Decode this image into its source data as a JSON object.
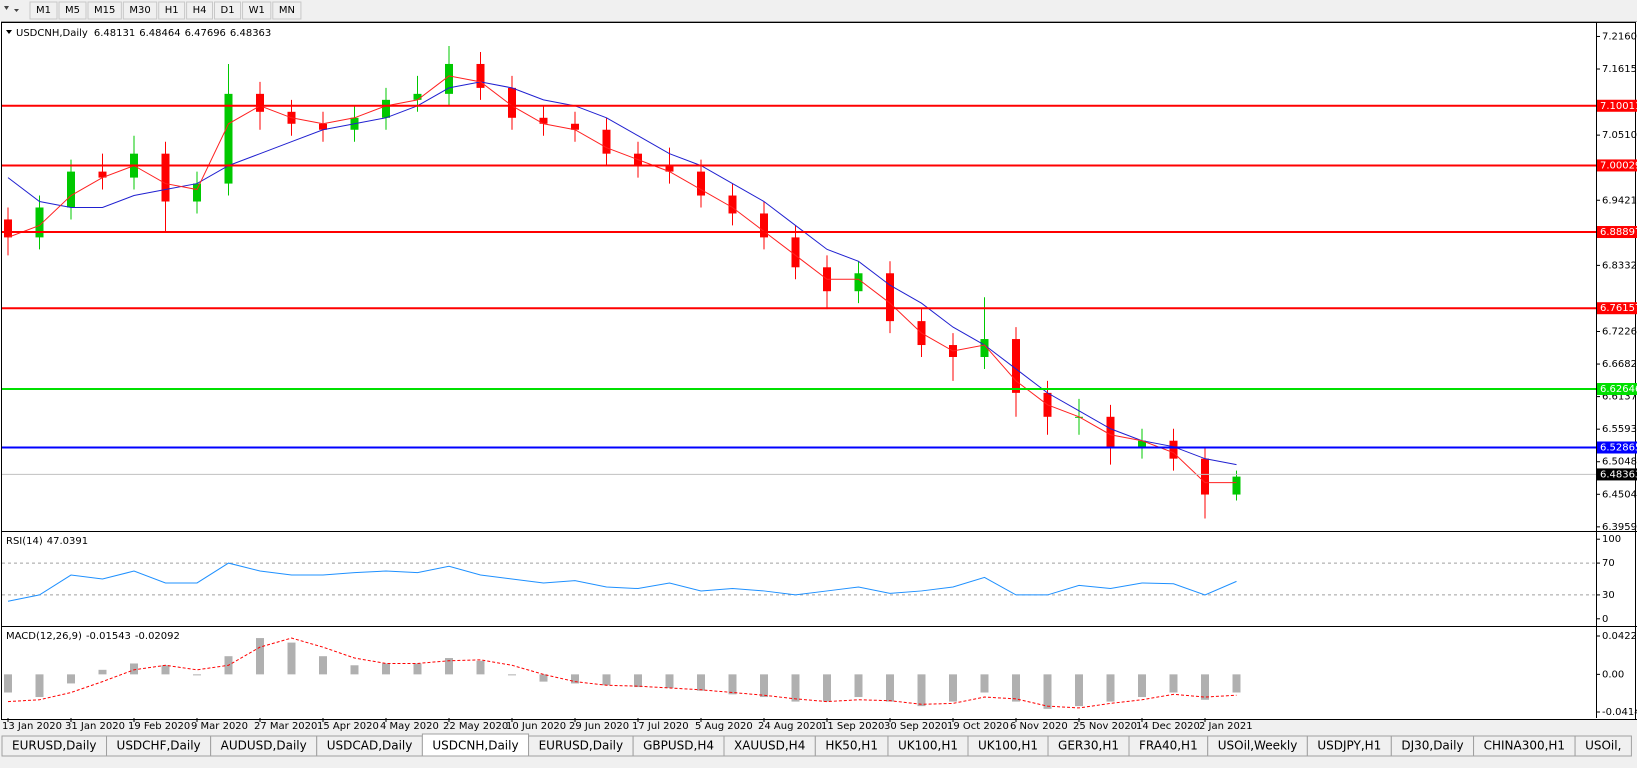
{
  "toolbar": {
    "timeframes": [
      "M1",
      "M5",
      "M15",
      "M30",
      "H1",
      "H4",
      "D1",
      "W1",
      "MN"
    ]
  },
  "chart": {
    "symbol": "USDCNH,Daily",
    "ohlc": [
      6.48131,
      6.48464,
      6.47696,
      6.48363
    ],
    "ylim": [
      6.3907,
      7.2385
    ],
    "yticks": [
      {
        "value": 7.216,
        "label": "7.21600"
      },
      7.16155,
      {
        "value": 7.051,
        "label": "7.05100"
      },
      {
        "value": 6.9421,
        "label": "6.94210"
      },
      {
        "value": 6.8332,
        "label": "6.83320"
      },
      6.72265,
      {
        "value": 6.6682,
        "label": "6.66820"
      },
      6.61375,
      {
        "value": 6.5593,
        "label": "6.55930"
      },
      6.50485,
      {
        "value": 6.4504,
        "label": "6.45040"
      },
      6.39595
    ],
    "levels": [
      {
        "value": 7.10011,
        "color": "#ff0000"
      },
      {
        "value": 7.00029,
        "color": "#ff0000"
      },
      {
        "value": 6.88897,
        "color": "#ff0000"
      },
      {
        "value": 6.76157,
        "color": "#ff0000"
      },
      {
        "value": 6.62646,
        "color": "#00e000"
      },
      {
        "value": 6.52865,
        "color": "#0000ff"
      }
    ],
    "up_color": "#00c800",
    "down_color": "#ff0000",
    "candles": {
      "open": [
        6.91,
        6.88,
        6.93,
        6.99,
        6.98,
        7.02,
        6.94,
        6.97,
        7.12,
        7.09,
        7.07,
        7.06,
        7.08,
        7.11,
        7.12,
        7.17,
        7.13,
        7.08,
        7.07,
        7.06,
        7.02,
        7.0,
        6.99,
        6.95,
        6.92,
        6.88,
        6.83,
        6.79,
        6.82,
        6.74,
        6.7,
        6.68,
        6.71,
        6.62,
        6.58,
        6.58,
        6.53,
        6.54,
        6.51,
        6.45
      ],
      "high": [
        6.93,
        6.95,
        7.01,
        7.02,
        7.05,
        7.04,
        6.99,
        7.17,
        7.14,
        7.11,
        7.09,
        7.1,
        7.13,
        7.15,
        7.2,
        7.19,
        7.15,
        7.1,
        7.09,
        7.08,
        7.04,
        7.03,
        7.01,
        6.97,
        6.94,
        6.9,
        6.85,
        6.84,
        6.84,
        6.76,
        6.72,
        6.78,
        6.73,
        6.64,
        6.61,
        6.6,
        6.56,
        6.56,
        6.53,
        6.49
      ],
      "low": [
        6.85,
        6.86,
        6.91,
        6.96,
        6.96,
        6.89,
        6.92,
        6.95,
        7.06,
        7.05,
        7.04,
        7.04,
        7.06,
        7.09,
        7.1,
        7.11,
        7.06,
        7.05,
        7.04,
        7.0,
        6.98,
        6.97,
        6.93,
        6.9,
        6.86,
        6.81,
        6.76,
        6.77,
        6.72,
        6.68,
        6.64,
        6.66,
        6.58,
        6.55,
        6.55,
        6.5,
        6.51,
        6.49,
        6.41,
        6.44
      ],
      "close": [
        6.88,
        6.93,
        6.99,
        6.98,
        7.02,
        6.94,
        6.97,
        7.12,
        7.09,
        7.07,
        7.06,
        7.08,
        7.11,
        7.12,
        7.17,
        7.13,
        7.08,
        7.07,
        7.06,
        7.02,
        7.0,
        6.99,
        6.95,
        6.92,
        6.88,
        6.83,
        6.79,
        6.82,
        6.74,
        6.7,
        6.68,
        6.71,
        6.62,
        6.58,
        6.58,
        6.53,
        6.54,
        6.51,
        6.45,
        6.48
      ]
    },
    "ma_fast": {
      "color": "#ff2020",
      "values": [
        6.88,
        6.9,
        6.95,
        6.98,
        7.0,
        6.97,
        6.96,
        7.07,
        7.1,
        7.08,
        7.07,
        7.08,
        7.1,
        7.11,
        7.15,
        7.14,
        7.1,
        7.07,
        7.06,
        7.03,
        7.01,
        6.99,
        6.96,
        6.93,
        6.89,
        6.85,
        6.81,
        6.81,
        6.77,
        6.72,
        6.69,
        6.7,
        6.64,
        6.6,
        6.58,
        6.55,
        6.54,
        6.52,
        6.47,
        6.47
      ]
    },
    "ma_slow": {
      "color": "#2020d0",
      "values": [
        6.98,
        6.94,
        6.93,
        6.93,
        6.95,
        6.96,
        6.97,
        7.0,
        7.02,
        7.04,
        7.06,
        7.07,
        7.08,
        7.1,
        7.13,
        7.14,
        7.13,
        7.11,
        7.1,
        7.08,
        7.05,
        7.02,
        7.0,
        6.97,
        6.94,
        6.9,
        6.86,
        6.84,
        6.8,
        6.77,
        6.73,
        6.7,
        6.66,
        6.62,
        6.59,
        6.56,
        6.54,
        6.53,
        6.51,
        6.5
      ]
    },
    "current_color": "#000000",
    "date_labels": [
      "13 Jan 2020",
      "31 Jan 2020",
      "19 Feb 2020",
      "9 Mar 2020",
      "27 Mar 2020",
      "15 Apr 2020",
      "4 May 2020",
      "22 May 2020",
      "10 Jun 2020",
      "29 Jun 2020",
      "17 Jul 2020",
      "5 Aug 2020",
      "24 Aug 2020",
      "11 Sep 2020",
      "30 Sep 2020",
      "19 Oct 2020",
      "6 Nov 2020",
      "25 Nov 2020",
      "14 Dec 2020",
      "2 Jan 2021"
    ]
  },
  "rsi": {
    "label": "RSI(14)",
    "value": 47.0391,
    "color": "#1e90ff",
    "ylim": [
      -7.8,
      107.8
    ],
    "yticks": [
      100,
      70,
      30,
      0
    ],
    "values": [
      22,
      30,
      55,
      50,
      60,
      45,
      45,
      70,
      60,
      55,
      55,
      58,
      60,
      58,
      66,
      55,
      50,
      45,
      48,
      40,
      38,
      45,
      35,
      38,
      35,
      30,
      35,
      40,
      32,
      35,
      40,
      52,
      30,
      30,
      42,
      38,
      45,
      44,
      30,
      47
    ]
  },
  "macd": {
    "label": "MACD(12,26,9)",
    "main": -0.01543,
    "signal": -0.02092,
    "bar_color": "#b0b0b0",
    "signal_color": "#ff0000",
    "ylim": [
      -0.048092,
      0.051091
    ],
    "yticks": [
      0.042275,
      {
        "value": 0,
        "label": "0.00"
      },
      -0.04148
    ],
    "values": [
      -0.02,
      -0.025,
      -0.01,
      0.005,
      0.012,
      0.01,
      0.0,
      0.02,
      0.04,
      0.035,
      0.02,
      0.01,
      0.012,
      0.012,
      0.018,
      0.015,
      0.0,
      -0.008,
      -0.01,
      -0.012,
      -0.014,
      -0.015,
      -0.018,
      -0.022,
      -0.025,
      -0.03,
      -0.03,
      -0.025,
      -0.03,
      -0.035,
      -0.03,
      -0.02,
      -0.03,
      -0.038,
      -0.035,
      -0.03,
      -0.025,
      -0.02,
      -0.028,
      -0.02
    ],
    "signal_values": [
      -0.03,
      -0.028,
      -0.02,
      -0.008,
      0.005,
      0.01,
      0.005,
      0.01,
      0.03,
      0.04,
      0.03,
      0.018,
      0.012,
      0.012,
      0.015,
      0.016,
      0.01,
      0.0,
      -0.008,
      -0.012,
      -0.013,
      -0.015,
      -0.017,
      -0.02,
      -0.023,
      -0.027,
      -0.03,
      -0.028,
      -0.029,
      -0.033,
      -0.032,
      -0.025,
      -0.027,
      -0.035,
      -0.037,
      -0.032,
      -0.028,
      -0.022,
      -0.025,
      -0.023
    ]
  },
  "tabs": {
    "active": 4,
    "items": [
      "EURUSD,Daily",
      "USDCHF,Daily",
      "AUDUSD,Daily",
      "USDCAD,Daily",
      "USDCNH,Daily",
      "EURUSD,Daily",
      "GBPUSD,H4",
      "XAUUSD,H4",
      "HK50,H1",
      "UK100,H1",
      "UK100,H1",
      "GER30,H1",
      "FRA40,H1",
      "USOil,Weekly",
      "USDJPY,H1",
      "DJ30,Daily",
      "CHINA300,H1",
      "USOil,"
    ]
  }
}
